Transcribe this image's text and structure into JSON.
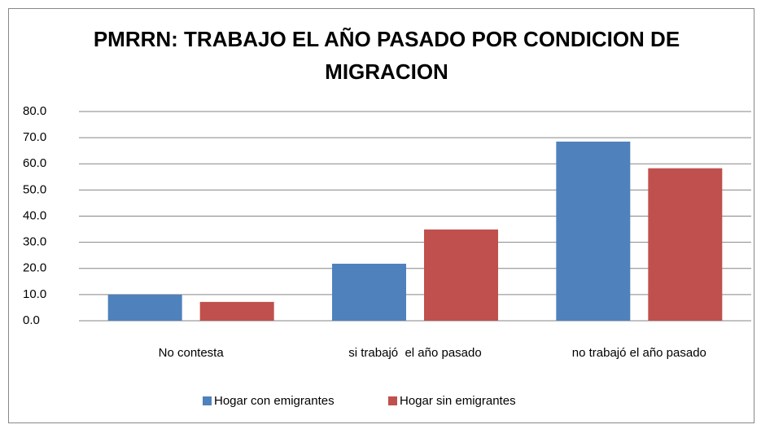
{
  "chart_data": {
    "type": "bar",
    "title": "PMRRN: TRABAJO EL AÑO PASADO POR CONDICION DE MIGRACION",
    "categories": [
      "No contesta",
      "si trabajó  el año pasado",
      "no trabajó el año pasado"
    ],
    "series": [
      {
        "name": "Hogar con emigrantes",
        "color": "#4f81bd",
        "values": [
          10.0,
          21.8,
          68.5
        ]
      },
      {
        "name": "Hogar sin emigrantes",
        "color": "#c0504d",
        "values": [
          7.2,
          34.9,
          58.3
        ]
      }
    ],
    "ylim": [
      0,
      80
    ],
    "yticks": [
      {
        "value": 0,
        "label": "0.0"
      },
      {
        "value": 10,
        "label": "10.0"
      },
      {
        "value": 20,
        "label": "20.0"
      },
      {
        "value": 30,
        "label": "30.0"
      },
      {
        "value": 40,
        "label": "40.0"
      },
      {
        "value": 50,
        "label": "50.0"
      },
      {
        "value": 60,
        "label": "60.0"
      },
      {
        "value": 70,
        "label": "70.0"
      },
      {
        "value": 80,
        "label": "80.0"
      }
    ],
    "grid": true,
    "legend": "bottom"
  }
}
